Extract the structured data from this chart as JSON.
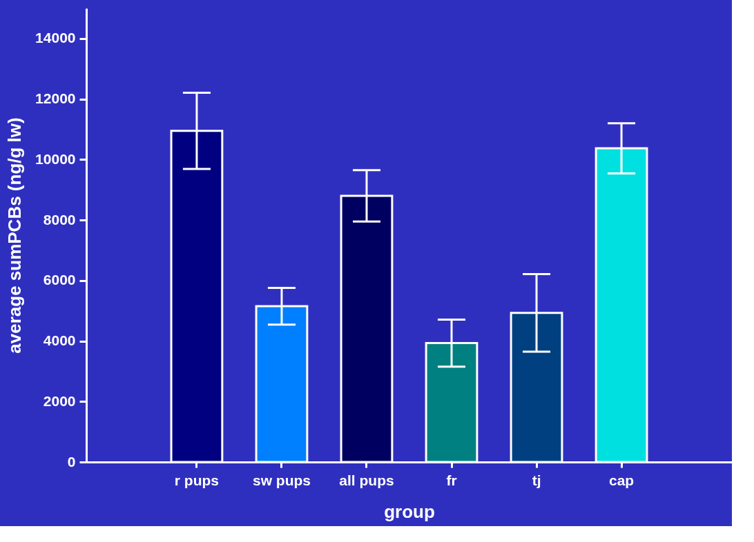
{
  "chart_data": {
    "type": "bar",
    "xlabel": "group",
    "ylabel": "average sumPCBs (ng/g lw)",
    "categories": [
      "r pups",
      "sw pups",
      "all pups",
      "fr",
      "tj",
      "cap"
    ],
    "values": [
      10950,
      5150,
      8800,
      3930,
      4930,
      10370
    ],
    "colors": [
      "#000080",
      "#0080ff",
      "#000060",
      "#008080",
      "#004080",
      "#00e0e0"
    ],
    "errors": [
      1260,
      605,
      850,
      780,
      1280,
      830
    ],
    "ylim": [
      0,
      15000
    ],
    "yticks": [
      0,
      2000,
      4000,
      6000,
      8000,
      10000,
      12000,
      14000
    ],
    "grid": false
  }
}
